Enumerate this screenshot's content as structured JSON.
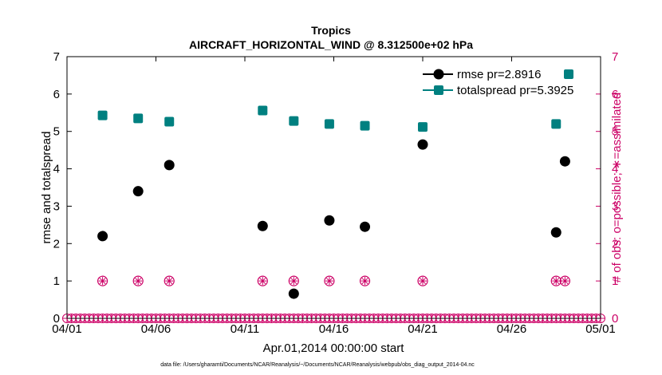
{
  "chart_data": {
    "type": "scatter",
    "title": "Tropics",
    "subtitle": "AIRCRAFT_HORIZONTAL_WIND @ 8.312500e+02 hPa",
    "xlabel": "Apr.01,2014 00:00:00 start",
    "ylabel": "rmse and totalspread",
    "ylabel_right": "# of obs: o=possible; ∗=assimilated",
    "footer": "data file: /Users/gharamti/Documents/NCAR/Reanalysis/~/Documents/NCAR/Reanalysis/webpub/obs_diag_output_2014-04.nc",
    "xlim": [
      0,
      30
    ],
    "ylim": [
      0,
      7
    ],
    "ylim_right": [
      0,
      7
    ],
    "x_ticks": [
      {
        "x": 0,
        "label": "04/01"
      },
      {
        "x": 5,
        "label": "04/06"
      },
      {
        "x": 10,
        "label": "04/11"
      },
      {
        "x": 15,
        "label": "04/16"
      },
      {
        "x": 20,
        "label": "04/21"
      },
      {
        "x": 25,
        "label": "04/26"
      },
      {
        "x": 30,
        "label": "05/01"
      }
    ],
    "y_ticks": [
      0,
      1,
      2,
      3,
      4,
      5,
      6,
      7
    ],
    "y_ticks_right": [
      0,
      1,
      2,
      3,
      4,
      5,
      6,
      7
    ],
    "series": [
      {
        "name": "rmse",
        "legend": "rmse pr=2.8916",
        "color": "#000000",
        "marker": "circle",
        "axis": "left",
        "points": [
          {
            "x": 2.0,
            "y": 2.2
          },
          {
            "x": 4.0,
            "y": 3.4
          },
          {
            "x": 5.75,
            "y": 4.1
          },
          {
            "x": 11.0,
            "y": 2.47
          },
          {
            "x": 12.75,
            "y": 0.66
          },
          {
            "x": 14.75,
            "y": 2.62
          },
          {
            "x": 16.75,
            "y": 2.45
          },
          {
            "x": 20.0,
            "y": 4.65
          },
          {
            "x": 27.5,
            "y": 2.3
          },
          {
            "x": 28.0,
            "y": 4.2
          }
        ]
      },
      {
        "name": "totalspread",
        "legend": "totalspread pr=5.3925",
        "color": "#008080",
        "marker": "square",
        "axis": "left",
        "points": [
          {
            "x": 2.0,
            "y": 5.43
          },
          {
            "x": 4.0,
            "y": 5.35
          },
          {
            "x": 5.75,
            "y": 5.26
          },
          {
            "x": 11.0,
            "y": 5.56
          },
          {
            "x": 12.75,
            "y": 5.28
          },
          {
            "x": 14.75,
            "y": 5.2
          },
          {
            "x": 16.75,
            "y": 5.15
          },
          {
            "x": 20.0,
            "y": 5.12
          },
          {
            "x": 27.5,
            "y": 5.2
          }
        ]
      }
    ],
    "obs_counts": {
      "color": "#cc0066",
      "axis": "right",
      "possible_marker": "circle",
      "assimilated_marker": "asterisk",
      "points": [
        {
          "x": 2.0,
          "y": 1
        },
        {
          "x": 4.0,
          "y": 1
        },
        {
          "x": 5.75,
          "y": 1
        },
        {
          "x": 11.0,
          "y": 1
        },
        {
          "x": 12.75,
          "y": 1
        },
        {
          "x": 14.75,
          "y": 1
        },
        {
          "x": 16.75,
          "y": 1
        },
        {
          "x": 20.0,
          "y": 1
        },
        {
          "x": 27.5,
          "y": 1
        },
        {
          "x": 28.0,
          "y": 1
        }
      ],
      "baseline_step": 0.25,
      "baseline_value": 0
    },
    "legend_position": "top-right",
    "legend_extra_marker": {
      "series": "totalspread",
      "count": 1
    },
    "grid": false
  }
}
